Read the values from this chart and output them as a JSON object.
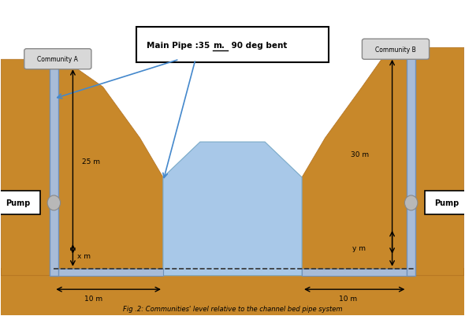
{
  "title": "Fig .2: Communities' level relative to the channel bed pipe system",
  "main_pipe_label": "Main Pipe :35 ",
  "main_pipe_underline": "m.",
  "main_pipe_suffix": " 90 deg bent",
  "community_a": "Community A",
  "community_b": "Community B",
  "pump_label": "Pump",
  "dim_25m": "25 m",
  "dim_30m": "30 m",
  "dim_xm": "x m",
  "dim_ym": "y m",
  "dim_10m_left": "10 m",
  "dim_10m_right": "10 m",
  "bg_color": "#ffffff",
  "soil_color": "#c8882a",
  "soil_edge_color": "#b07020",
  "water_color": "#a8c8e8",
  "water_edge_color": "#7aaac8",
  "pipe_color": "#a8bcd8",
  "pipe_edge_color": "#7090b8",
  "dashed_line_color": "#333333",
  "arrow_color": "#000000",
  "blue_arrow_color": "#4488cc",
  "box_bg": "#d8d8d8",
  "box_edge": "#888888"
}
